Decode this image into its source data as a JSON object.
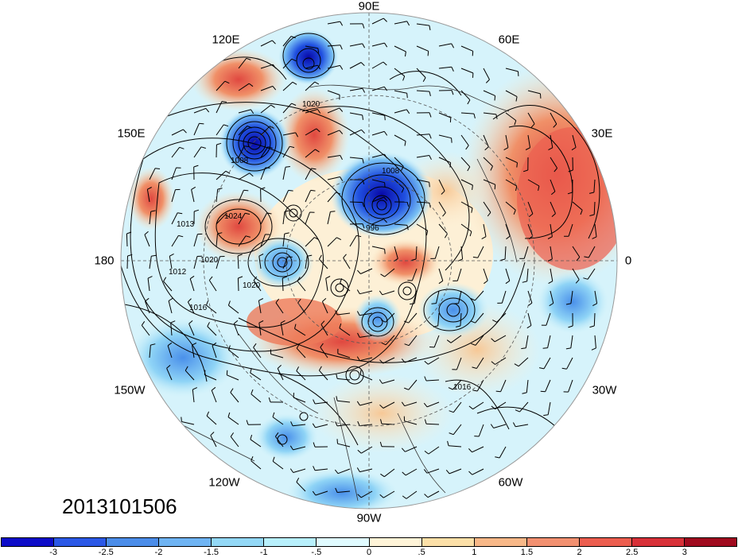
{
  "map": {
    "projection": "north polar stereographic",
    "date_label": "2013101506",
    "longitude_labels": [
      {
        "key": "lon-90e",
        "text": "90E"
      },
      {
        "key": "lon-60e",
        "text": "60E"
      },
      {
        "key": "lon-30e",
        "text": "30E"
      },
      {
        "key": "lon-0",
        "text": "0"
      },
      {
        "key": "lon-30w",
        "text": "30W"
      },
      {
        "key": "lon-60w",
        "text": "60W"
      },
      {
        "key": "lon-90w",
        "text": "90W"
      },
      {
        "key": "lon-120w",
        "text": "120W"
      },
      {
        "key": "lon-150w",
        "text": "150W"
      },
      {
        "key": "lon-180",
        "text": "180"
      },
      {
        "key": "lon-150e",
        "text": "150E"
      },
      {
        "key": "lon-120e",
        "text": "120E"
      }
    ],
    "contour_labels": [
      "1020",
      "1008",
      "1008",
      "1024",
      "1013",
      "1020",
      "1012",
      "1016",
      "1020",
      "996",
      "1016"
    ],
    "colors": {
      "strong_negative": "#1010c8",
      "negative": "#5aa0f0",
      "weak_negative": "#c8f0fa",
      "weak_positive": "#fbe6c0",
      "positive": "#f08060",
      "strong_positive": "#a01020"
    }
  },
  "colorbar": {
    "colors": [
      "#0d0cc8",
      "#2b58e6",
      "#4b8de9",
      "#6fb4f3",
      "#93d8f6",
      "#b8f0fc",
      "#e0fbff",
      "#fff4d8",
      "#fce0a8",
      "#f8b888",
      "#f29070",
      "#ec5d4e",
      "#d83038",
      "#a00a1e"
    ],
    "tick_labels": [
      "-3",
      "-2.5",
      "-2",
      "-1.5",
      "-1",
      "-.5",
      "0",
      ".5",
      "1",
      "1.5",
      "2",
      "2.5",
      "3"
    ]
  }
}
